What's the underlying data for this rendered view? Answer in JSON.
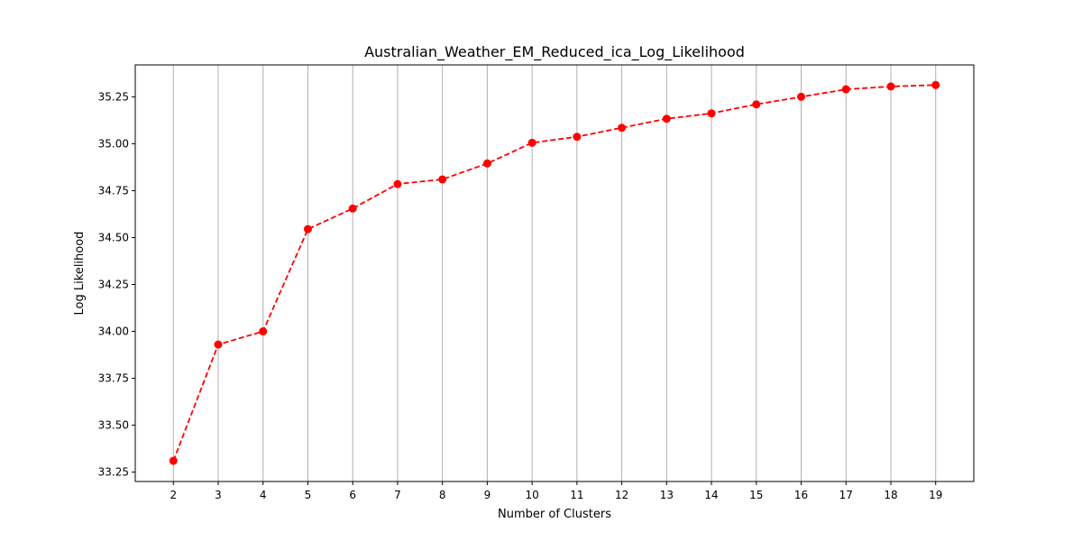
{
  "chart_data": {
    "type": "line",
    "title": "Australian_Weather_EM_Reduced_ica_Log_Likelihood",
    "xlabel": "Number of Clusters",
    "ylabel": "Log Likelihood",
    "x": [
      2,
      3,
      4,
      5,
      6,
      7,
      8,
      9,
      10,
      11,
      12,
      13,
      14,
      15,
      16,
      17,
      18,
      19
    ],
    "x_tick_labels": [
      "2",
      "3",
      "4",
      "5",
      "6",
      "7",
      "8",
      "9",
      "10",
      "11",
      "12",
      "13",
      "14",
      "15",
      "16",
      "17",
      "18",
      "19"
    ],
    "series": [
      {
        "values": [
          33.31,
          33.93,
          34.0,
          34.545,
          34.655,
          34.785,
          34.81,
          34.895,
          35.005,
          35.037,
          35.085,
          35.133,
          35.162,
          35.21,
          35.25,
          35.29,
          35.305,
          35.313
        ],
        "color": "#ff0000",
        "line_style": "dashed",
        "marker": "circle"
      }
    ],
    "y_ticks": [
      33.25,
      33.5,
      33.75,
      34.0,
      34.25,
      34.5,
      34.75,
      35.0,
      35.25
    ],
    "y_tick_labels": [
      "33.25",
      "33.50",
      "33.75",
      "34.00",
      "34.25",
      "34.50",
      "34.75",
      "35.00",
      "35.25"
    ],
    "xlim": [
      1.15,
      19.85
    ],
    "ylim": [
      33.2,
      35.42
    ],
    "grid": "vertical",
    "grid_color": "#b0b0b0",
    "legend": "none"
  }
}
